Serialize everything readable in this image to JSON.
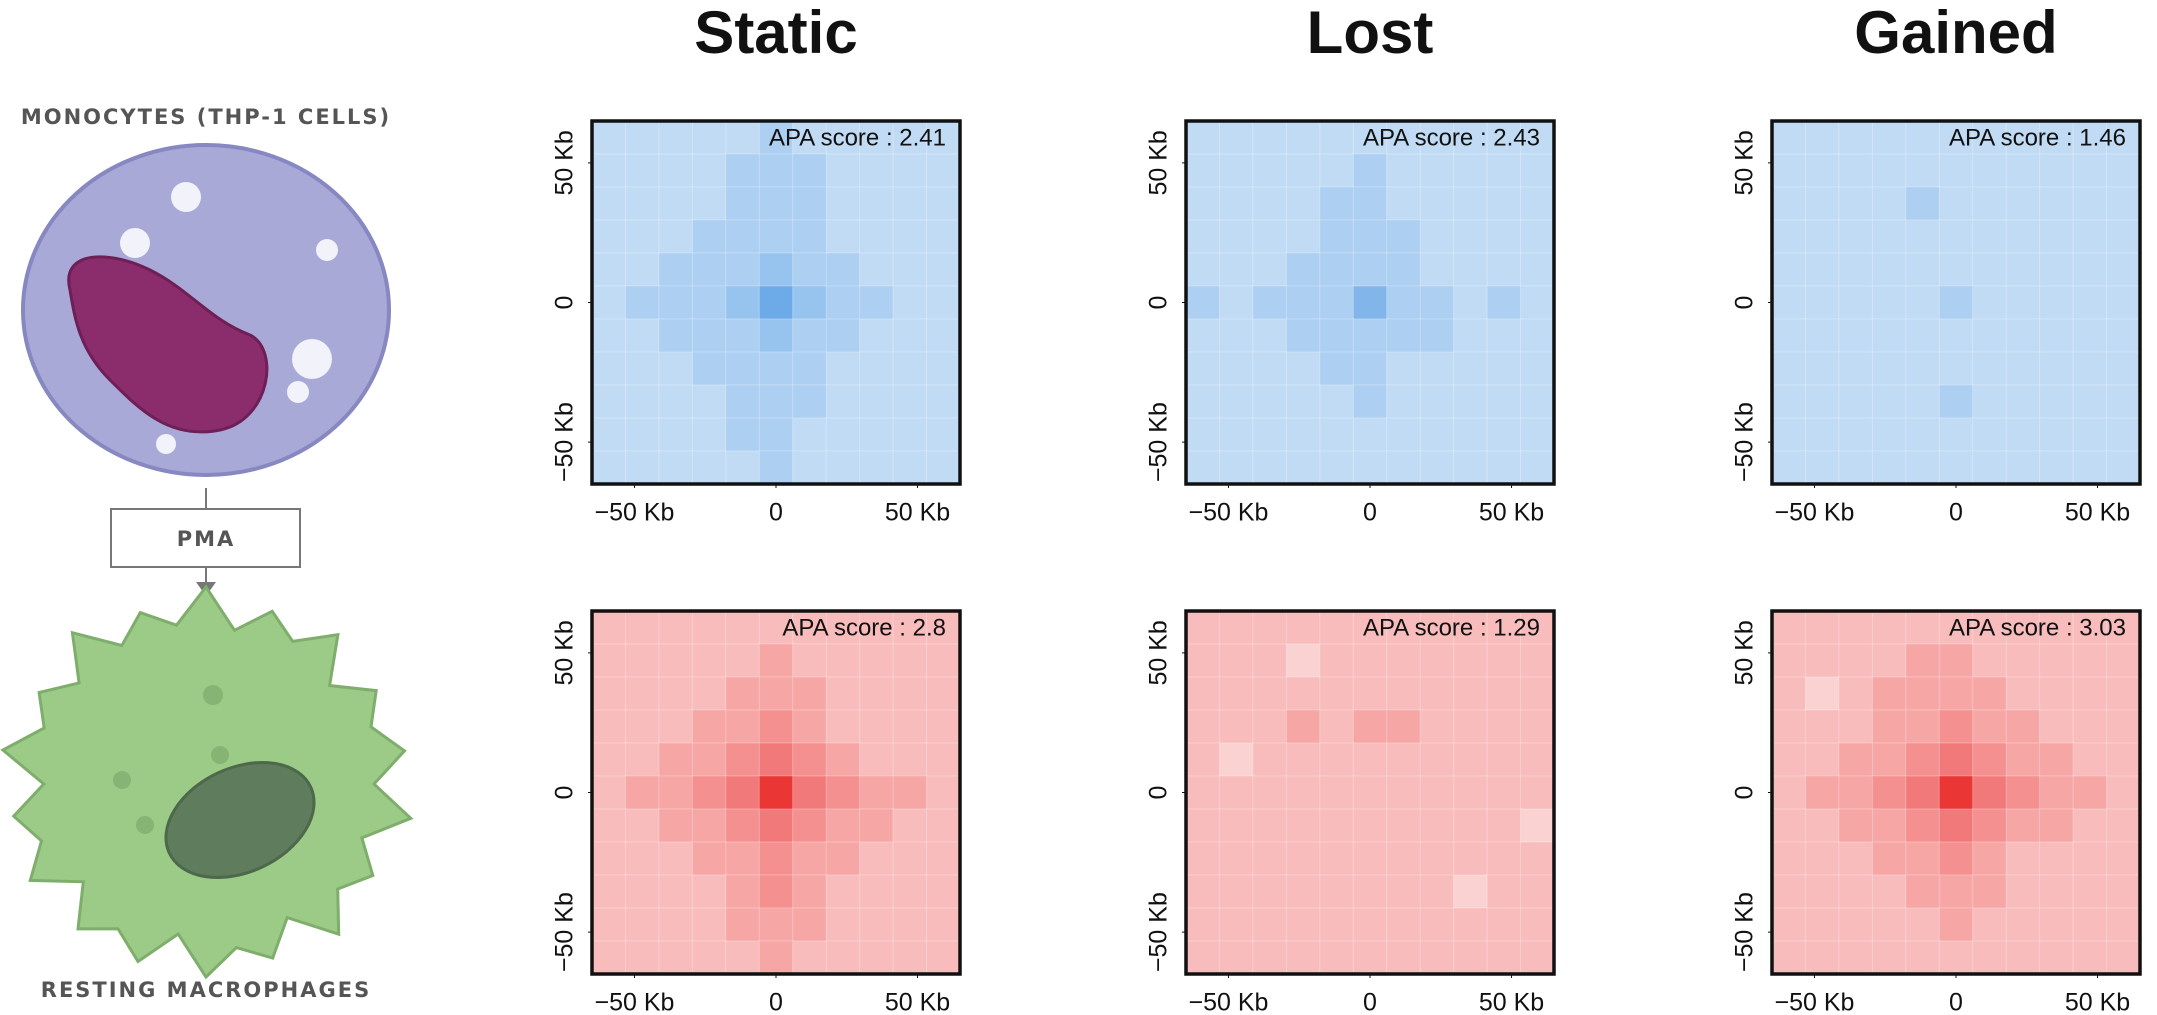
{
  "illustration": {
    "top_label": "MONOCYTES (THP-1 CELLS)",
    "treatment": "PMA",
    "bottom_label": "RESTING MACROPHAGES"
  },
  "chart_data": [
    {
      "type": "heatmap",
      "title": "Static",
      "annotation": "APA score : 2.41",
      "color": "#2f86de",
      "zlim": [
        0,
        10
      ],
      "xlim": [
        -65,
        65
      ],
      "ylim": [
        -65,
        65
      ],
      "xticks": [
        {
          "value": -50,
          "label": "−50 Kb"
        },
        0,
        {
          "value": 50,
          "label": "50 Kb"
        }
      ],
      "yticks": [
        {
          "value": -50,
          "label": "−50 Kb"
        },
        0,
        {
          "value": 50,
          "label": "50 Kb"
        }
      ],
      "values": [
        [
          3,
          3,
          3,
          3,
          3,
          4,
          3,
          3,
          3,
          3,
          3
        ],
        [
          3,
          3,
          3,
          3,
          4,
          4,
          4,
          3,
          3,
          3,
          3
        ],
        [
          3,
          3,
          3,
          3,
          4,
          4,
          4,
          3,
          3,
          3,
          3
        ],
        [
          3,
          3,
          3,
          4,
          4,
          4,
          4,
          3,
          3,
          3,
          3
        ],
        [
          3,
          3,
          4,
          4,
          4,
          5,
          4,
          4,
          3,
          3,
          3
        ],
        [
          3,
          4,
          4,
          4,
          5,
          7,
          5,
          4,
          4,
          3,
          3
        ],
        [
          3,
          3,
          4,
          4,
          4,
          5,
          4,
          4,
          3,
          3,
          3
        ],
        [
          3,
          3,
          3,
          4,
          4,
          4,
          4,
          3,
          3,
          3,
          3
        ],
        [
          3,
          3,
          3,
          3,
          4,
          4,
          4,
          3,
          3,
          3,
          3
        ],
        [
          3,
          3,
          3,
          3,
          4,
          4,
          3,
          3,
          3,
          3,
          3
        ],
        [
          3,
          3,
          3,
          3,
          3,
          4,
          3,
          3,
          3,
          3,
          3
        ]
      ]
    },
    {
      "type": "heatmap",
      "title": "Lost",
      "annotation": "APA score : 2.43",
      "color": "#2f86de",
      "zlim": [
        0,
        10
      ],
      "xlim": [
        -65,
        65
      ],
      "ylim": [
        -65,
        65
      ],
      "xticks": [
        {
          "value": -50,
          "label": "−50 Kb"
        },
        0,
        {
          "value": 50,
          "label": "50 Kb"
        }
      ],
      "yticks": [
        {
          "value": -50,
          "label": "−50 Kb"
        },
        0,
        {
          "value": 50,
          "label": "50 Kb"
        }
      ],
      "values": [
        [
          3,
          3,
          3,
          3,
          3,
          3,
          3,
          3,
          3,
          3,
          3
        ],
        [
          3,
          3,
          3,
          3,
          3,
          4,
          3,
          3,
          3,
          3,
          3
        ],
        [
          3,
          3,
          3,
          3,
          4,
          4,
          3,
          3,
          3,
          3,
          3
        ],
        [
          3,
          3,
          3,
          3,
          4,
          4,
          4,
          3,
          3,
          3,
          3
        ],
        [
          3,
          3,
          3,
          4,
          4,
          4,
          4,
          3,
          3,
          3,
          3
        ],
        [
          4,
          3,
          4,
          4,
          4,
          6,
          4,
          4,
          3,
          4,
          3
        ],
        [
          3,
          3,
          3,
          4,
          4,
          4,
          4,
          4,
          3,
          3,
          3
        ],
        [
          3,
          3,
          3,
          3,
          4,
          4,
          3,
          3,
          3,
          3,
          3
        ],
        [
          3,
          3,
          3,
          3,
          3,
          4,
          3,
          3,
          3,
          3,
          3
        ],
        [
          3,
          3,
          3,
          3,
          3,
          3,
          3,
          3,
          3,
          3,
          3
        ],
        [
          3,
          3,
          3,
          3,
          3,
          3,
          3,
          3,
          3,
          3,
          3
        ]
      ]
    },
    {
      "type": "heatmap",
      "title": "Gained",
      "annotation": "APA score : 1.46",
      "color": "#2f86de",
      "zlim": [
        0,
        10
      ],
      "xlim": [
        -65,
        65
      ],
      "ylim": [
        -65,
        65
      ],
      "xticks": [
        {
          "value": -50,
          "label": "−50 Kb"
        },
        0,
        {
          "value": 50,
          "label": "50 Kb"
        }
      ],
      "yticks": [
        {
          "value": -50,
          "label": "−50 Kb"
        },
        0,
        {
          "value": 50,
          "label": "50 Kb"
        }
      ],
      "values": [
        [
          3,
          3,
          3,
          3,
          3,
          3,
          3,
          3,
          3,
          3,
          3
        ],
        [
          3,
          3,
          3,
          3,
          3,
          3,
          3,
          3,
          3,
          3,
          3
        ],
        [
          3,
          3,
          3,
          3,
          4,
          3,
          3,
          3,
          3,
          3,
          3
        ],
        [
          3,
          3,
          3,
          3,
          3,
          3,
          3,
          3,
          3,
          3,
          3
        ],
        [
          3,
          3,
          3,
          3,
          3,
          3,
          3,
          3,
          3,
          3,
          3
        ],
        [
          3,
          3,
          3,
          3,
          3,
          4,
          3,
          3,
          3,
          3,
          3
        ],
        [
          3,
          3,
          3,
          3,
          3,
          3,
          3,
          3,
          3,
          3,
          3
        ],
        [
          3,
          3,
          3,
          3,
          3,
          3,
          3,
          3,
          3,
          3,
          3
        ],
        [
          3,
          3,
          3,
          3,
          3,
          4,
          3,
          3,
          3,
          3,
          3
        ],
        [
          3,
          3,
          3,
          3,
          3,
          3,
          3,
          3,
          3,
          3,
          3
        ],
        [
          3,
          3,
          3,
          3,
          3,
          3,
          3,
          3,
          3,
          3,
          3
        ]
      ]
    },
    {
      "type": "heatmap",
      "annotation": "APA score : 2.8",
      "color": "#e8201f",
      "zlim": [
        0,
        10
      ],
      "xlim": [
        -65,
        65
      ],
      "ylim": [
        -65,
        65
      ],
      "xticks": [
        {
          "value": -50,
          "label": "−50 Kb"
        },
        0,
        {
          "value": 50,
          "label": "50 Kb"
        }
      ],
      "yticks": [
        {
          "value": -50,
          "label": "−50 Kb"
        },
        0,
        {
          "value": 50,
          "label": "50 Kb"
        }
      ],
      "values": [
        [
          3,
          3,
          3,
          3,
          3,
          3,
          3,
          3,
          3,
          3,
          3
        ],
        [
          3,
          3,
          3,
          3,
          3,
          4,
          3,
          3,
          3,
          3,
          3
        ],
        [
          3,
          3,
          3,
          3,
          4,
          4,
          4,
          3,
          3,
          3,
          3
        ],
        [
          3,
          3,
          3,
          4,
          4,
          5,
          4,
          3,
          3,
          3,
          3
        ],
        [
          3,
          3,
          4,
          4,
          5,
          6,
          5,
          4,
          3,
          3,
          3
        ],
        [
          3,
          4,
          4,
          5,
          6,
          9,
          6,
          5,
          4,
          4,
          3
        ],
        [
          3,
          3,
          4,
          4,
          5,
          6,
          5,
          4,
          4,
          3,
          3
        ],
        [
          3,
          3,
          3,
          4,
          4,
          5,
          4,
          4,
          3,
          3,
          3
        ],
        [
          3,
          3,
          3,
          3,
          4,
          5,
          4,
          3,
          3,
          3,
          3
        ],
        [
          3,
          3,
          3,
          3,
          4,
          4,
          4,
          3,
          3,
          3,
          3
        ],
        [
          3,
          3,
          3,
          3,
          3,
          4,
          3,
          3,
          3,
          3,
          3
        ]
      ]
    },
    {
      "type": "heatmap",
      "annotation": "APA score : 1.29",
      "color": "#e8201f",
      "zlim": [
        0,
        10
      ],
      "xlim": [
        -65,
        65
      ],
      "ylim": [
        -65,
        65
      ],
      "xticks": [
        {
          "value": -50,
          "label": "−50 Kb"
        },
        0,
        {
          "value": 50,
          "label": "50 Kb"
        }
      ],
      "yticks": [
        {
          "value": -50,
          "label": "−50 Kb"
        },
        0,
        {
          "value": 50,
          "label": "50 Kb"
        }
      ],
      "values": [
        [
          3,
          3,
          3,
          3,
          3,
          3,
          3,
          3,
          3,
          3,
          3
        ],
        [
          3,
          3,
          3,
          2,
          3,
          3,
          3,
          3,
          3,
          3,
          3
        ],
        [
          3,
          3,
          3,
          3,
          3,
          3,
          3,
          3,
          3,
          3,
          3
        ],
        [
          3,
          3,
          3,
          4,
          3,
          4,
          4,
          3,
          3,
          3,
          3
        ],
        [
          3,
          2,
          3,
          3,
          3,
          3,
          3,
          3,
          3,
          3,
          3
        ],
        [
          3,
          3,
          3,
          3,
          3,
          3,
          3,
          3,
          3,
          3,
          3
        ],
        [
          3,
          3,
          3,
          3,
          3,
          3,
          3,
          3,
          3,
          3,
          2
        ],
        [
          3,
          3,
          3,
          3,
          3,
          3,
          3,
          3,
          3,
          3,
          3
        ],
        [
          3,
          3,
          3,
          3,
          3,
          3,
          3,
          3,
          2,
          3,
          3
        ],
        [
          3,
          3,
          3,
          3,
          3,
          3,
          3,
          3,
          3,
          3,
          3
        ],
        [
          3,
          3,
          3,
          3,
          3,
          3,
          3,
          3,
          3,
          3,
          3
        ]
      ]
    },
    {
      "type": "heatmap",
      "annotation": "APA score : 3.03",
      "color": "#e8201f",
      "zlim": [
        0,
        10
      ],
      "xlim": [
        -65,
        65
      ],
      "ylim": [
        -65,
        65
      ],
      "xticks": [
        {
          "value": -50,
          "label": "−50 Kb"
        },
        0,
        {
          "value": 50,
          "label": "50 Kb"
        }
      ],
      "yticks": [
        {
          "value": -50,
          "label": "−50 Kb"
        },
        0,
        {
          "value": 50,
          "label": "50 Kb"
        }
      ],
      "values": [
        [
          3,
          3,
          3,
          3,
          3,
          3,
          3,
          3,
          3,
          3,
          3
        ],
        [
          3,
          3,
          3,
          3,
          4,
          4,
          3,
          3,
          3,
          3,
          3
        ],
        [
          3,
          2,
          3,
          4,
          4,
          4,
          4,
          3,
          3,
          3,
          3
        ],
        [
          3,
          3,
          3,
          4,
          4,
          5,
          4,
          4,
          3,
          3,
          3
        ],
        [
          3,
          3,
          4,
          4,
          5,
          6,
          5,
          4,
          4,
          3,
          3
        ],
        [
          3,
          4,
          4,
          5,
          6,
          9,
          6,
          5,
          4,
          4,
          3
        ],
        [
          3,
          3,
          4,
          4,
          5,
          6,
          5,
          4,
          4,
          3,
          3
        ],
        [
          3,
          3,
          3,
          4,
          4,
          5,
          4,
          3,
          3,
          3,
          3
        ],
        [
          3,
          3,
          3,
          3,
          4,
          4,
          4,
          3,
          3,
          3,
          3
        ],
        [
          3,
          3,
          3,
          3,
          3,
          4,
          3,
          3,
          3,
          3,
          3
        ],
        [
          3,
          3,
          3,
          3,
          3,
          3,
          3,
          3,
          3,
          3,
          3
        ]
      ]
    }
  ]
}
